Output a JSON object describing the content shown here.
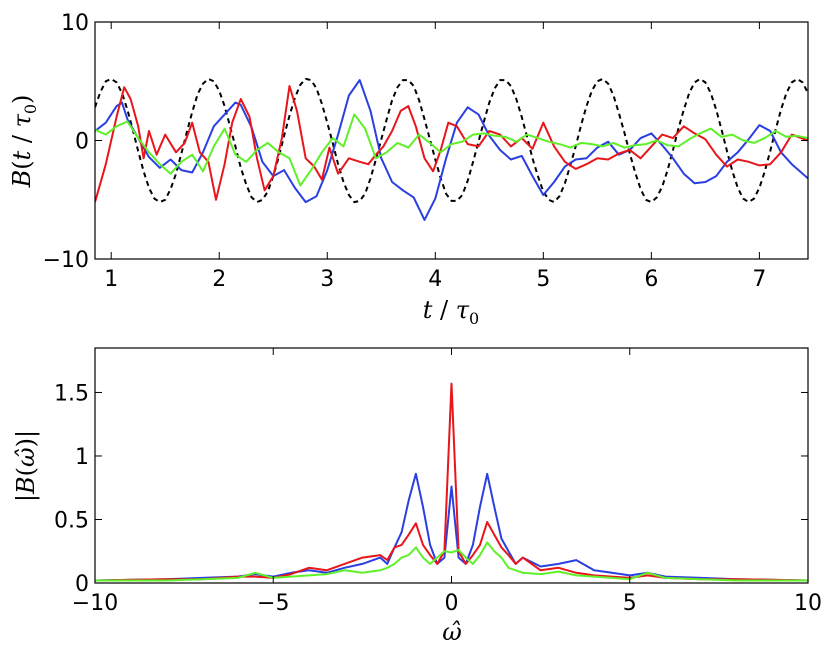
{
  "chart_data": [
    {
      "type": "line",
      "xlabel": "t / τ0",
      "ylabel": "B(t / τ0)",
      "xlim": [
        0.85,
        7.45
      ],
      "ylim": [
        -10,
        10
      ],
      "xticks": [
        1,
        2,
        3,
        4,
        5,
        6,
        7
      ],
      "yticks": [
        -10,
        0,
        10
      ],
      "ytick_labels": [
        "−10",
        "0",
        "10"
      ],
      "grid": false,
      "series": [
        {
          "color": "#000000",
          "style": "dashed",
          "x": [
            0.85,
            0.9,
            0.95,
            1.0,
            1.05,
            1.1,
            1.15,
            1.2,
            1.25,
            1.3,
            1.35,
            1.4,
            1.45,
            1.5,
            1.55,
            1.6,
            1.65,
            1.7,
            1.75,
            1.8,
            1.85,
            1.9,
            1.95,
            2.0,
            2.05,
            2.1,
            2.15,
            2.2,
            2.25,
            2.3,
            2.35,
            2.4,
            2.45,
            2.5,
            2.55,
            2.6,
            2.65,
            2.7,
            2.75,
            2.8,
            2.85,
            2.9,
            2.95,
            3.0,
            3.05,
            3.1,
            3.15,
            3.2,
            3.25,
            3.3,
            3.35,
            3.4,
            3.45,
            3.5,
            3.55,
            3.6,
            3.65,
            3.7,
            3.75,
            3.8,
            3.85,
            3.9,
            3.95,
            4.0,
            4.05,
            4.1,
            4.15,
            4.2,
            4.25,
            4.3,
            4.35,
            4.4,
            4.45,
            4.5,
            4.55,
            4.6,
            4.65,
            4.7,
            4.75,
            4.8,
            4.85,
            4.9,
            4.95,
            5.0,
            5.05,
            5.1,
            5.15,
            5.2,
            5.25,
            5.3,
            5.35,
            5.4,
            5.45,
            5.5,
            5.55,
            5.6,
            5.65,
            5.7,
            5.75,
            5.8,
            5.85,
            5.9,
            5.95,
            6.0,
            6.05,
            6.1,
            6.15,
            6.2,
            6.25,
            6.3,
            6.35,
            6.4,
            6.45,
            6.5,
            6.55,
            6.6,
            6.65,
            6.7,
            6.75,
            6.8,
            6.85,
            6.9,
            6.95,
            7.0,
            7.05,
            7.1,
            7.15,
            7.2,
            7.25,
            7.3,
            7.35,
            7.4,
            7.45
          ],
          "y": [
            2.8,
            4.1,
            5.0,
            5.2,
            4.9,
            4.0,
            2.6,
            0.9,
            -0.9,
            -2.6,
            -4.0,
            -4.9,
            -5.2,
            -5.0,
            -4.1,
            -2.8,
            -1.1,
            0.7,
            2.4,
            3.9,
            4.8,
            5.2,
            5.0,
            4.2,
            2.9,
            1.2,
            -0.5,
            -2.3,
            -3.7,
            -4.8,
            -5.2,
            -5.0,
            -4.3,
            -3.0,
            -1.4,
            0.4,
            2.1,
            3.6,
            4.7,
            5.2,
            5.1,
            4.4,
            3.1,
            1.5,
            -0.2,
            -2.0,
            -3.5,
            -4.6,
            -5.2,
            -5.1,
            -4.5,
            -3.2,
            -1.6,
            0.1,
            1.8,
            3.4,
            4.5,
            5.1,
            5.1,
            4.6,
            3.4,
            1.8,
            0.1,
            -1.6,
            -3.2,
            -4.5,
            -5.1,
            -5.1,
            -4.6,
            -3.4,
            -1.8,
            -0.1,
            1.6,
            3.2,
            4.4,
            5.1,
            5.1,
            4.6,
            3.5,
            2.0,
            0.3,
            -1.5,
            -3.0,
            -4.3,
            -5.0,
            -5.2,
            -4.7,
            -3.6,
            -2.1,
            -0.5,
            1.3,
            2.9,
            4.2,
            5.0,
            5.2,
            4.8,
            3.8,
            2.3,
            0.7,
            -1.1,
            -2.7,
            -4.1,
            -5.0,
            -5.2,
            -4.8,
            -3.9,
            -2.5,
            -0.8,
            1.0,
            2.6,
            4.0,
            4.9,
            5.2,
            4.9,
            4.0,
            2.6,
            0.9,
            -0.9,
            -2.6,
            -4.0,
            -4.9,
            -5.2,
            -4.9,
            -4.0,
            -2.6,
            -0.9,
            0.9,
            2.6,
            4.0,
            4.9,
            5.2,
            4.9,
            4.0
          ]
        },
        {
          "color": "#2a3fe0",
          "style": "solid",
          "x": [
            0.85,
            0.95,
            1.05,
            1.1,
            1.15,
            1.25,
            1.35,
            1.45,
            1.55,
            1.65,
            1.75,
            1.85,
            1.95,
            2.05,
            2.15,
            2.2,
            2.3,
            2.4,
            2.5,
            2.6,
            2.7,
            2.8,
            2.9,
            3.0,
            3.1,
            3.2,
            3.3,
            3.4,
            3.5,
            3.6,
            3.7,
            3.8,
            3.9,
            4.0,
            4.1,
            4.2,
            4.3,
            4.4,
            4.5,
            4.6,
            4.7,
            4.8,
            4.9,
            5.0,
            5.1,
            5.2,
            5.3,
            5.4,
            5.5,
            5.6,
            5.7,
            5.8,
            5.9,
            6.0,
            6.1,
            6.2,
            6.3,
            6.4,
            6.5,
            6.6,
            6.7,
            6.8,
            6.9,
            7.0,
            7.1,
            7.2,
            7.3,
            7.45
          ],
          "y": [
            0.8,
            1.5,
            2.9,
            3.2,
            1.8,
            0.2,
            -1.4,
            -2.3,
            -1.6,
            -2.5,
            -2.7,
            -1.0,
            1.2,
            2.2,
            3.2,
            3.0,
            1.1,
            -1.8,
            -3.0,
            -2.5,
            -4.0,
            -5.2,
            -4.7,
            -2.5,
            0.5,
            3.8,
            5.1,
            2.5,
            -1.5,
            -3.5,
            -4.2,
            -4.8,
            -6.7,
            -4.9,
            -1.5,
            1.5,
            2.8,
            2.2,
            0.4,
            -0.8,
            -1.6,
            -1.3,
            -3.0,
            -4.6,
            -3.5,
            -2.2,
            -1.6,
            -1.5,
            -0.6,
            -0.1,
            -1.2,
            -0.8,
            0.2,
            0.6,
            -0.4,
            -1.5,
            -2.8,
            -3.6,
            -3.5,
            -3.0,
            -1.8,
            -1.0,
            0.1,
            1.3,
            0.8,
            -1.0,
            -2.0,
            -3.2
          ]
        },
        {
          "color": "#e8161b",
          "style": "solid",
          "x": [
            0.85,
            0.95,
            1.05,
            1.12,
            1.18,
            1.25,
            1.3,
            1.35,
            1.42,
            1.5,
            1.6,
            1.68,
            1.75,
            1.82,
            1.9,
            1.97,
            2.05,
            2.12,
            2.2,
            2.28,
            2.35,
            2.42,
            2.5,
            2.58,
            2.65,
            2.72,
            2.8,
            2.88,
            2.95,
            3.02,
            3.1,
            3.2,
            3.3,
            3.38,
            3.45,
            3.52,
            3.6,
            3.68,
            3.75,
            3.82,
            3.9,
            3.98,
            4.05,
            4.12,
            4.2,
            4.3,
            4.4,
            4.5,
            4.6,
            4.7,
            4.8,
            4.9,
            5.0,
            5.1,
            5.2,
            5.3,
            5.4,
            5.5,
            5.6,
            5.7,
            5.8,
            5.9,
            6.0,
            6.1,
            6.2,
            6.3,
            6.4,
            6.5,
            6.6,
            6.7,
            6.8,
            6.9,
            7.0,
            7.1,
            7.2,
            7.3,
            7.45
          ],
          "y": [
            -5.2,
            -2.0,
            2.0,
            4.5,
            3.5,
            1.2,
            -1.5,
            0.8,
            -1.2,
            0.5,
            -1.0,
            -0.2,
            1.5,
            -1.0,
            -1.8,
            -5.0,
            -2.0,
            1.5,
            3.5,
            2.0,
            -1.5,
            -4.2,
            -3.0,
            0.2,
            4.6,
            2.5,
            -1.5,
            -2.2,
            -3.3,
            -0.6,
            -2.8,
            -1.5,
            -1.8,
            -2.0,
            -1.2,
            -0.5,
            0.8,
            2.5,
            2.9,
            1.2,
            -1.5,
            -2.6,
            -0.8,
            1.5,
            1.2,
            -0.3,
            -0.5,
            0.8,
            0.5,
            -0.5,
            0.2,
            -0.7,
            1.5,
            -0.5,
            -1.8,
            -2.4,
            -2.0,
            -1.5,
            -1.6,
            -1.1,
            -0.8,
            -1.5,
            -0.5,
            0.5,
            0.2,
            1.2,
            0.6,
            0.1,
            -1.2,
            -2.2,
            -1.6,
            -1.8,
            -2.1,
            -2.0,
            -1.0,
            0.5,
            0.0
          ]
        },
        {
          "color": "#5ff02a",
          "style": "solid",
          "x": [
            0.85,
            0.95,
            1.05,
            1.15,
            1.25,
            1.35,
            1.45,
            1.55,
            1.65,
            1.75,
            1.85,
            1.95,
            2.05,
            2.15,
            2.25,
            2.35,
            2.45,
            2.55,
            2.65,
            2.75,
            2.85,
            2.95,
            3.05,
            3.15,
            3.25,
            3.35,
            3.45,
            3.55,
            3.65,
            3.75,
            3.85,
            3.95,
            4.05,
            4.15,
            4.25,
            4.35,
            4.45,
            4.55,
            4.65,
            4.75,
            4.85,
            4.95,
            5.05,
            5.15,
            5.25,
            5.35,
            5.45,
            5.55,
            5.65,
            5.75,
            5.85,
            5.95,
            6.05,
            6.15,
            6.25,
            6.35,
            6.45,
            6.55,
            6.65,
            6.75,
            6.85,
            6.95,
            7.05,
            7.15,
            7.25,
            7.35,
            7.45
          ],
          "y": [
            0.9,
            0.5,
            1.2,
            1.6,
            0.2,
            -1.0,
            -2.0,
            -2.8,
            -1.8,
            -1.2,
            -2.6,
            -0.5,
            1.0,
            -1.2,
            -1.8,
            -0.8,
            -0.2,
            -1.0,
            -1.5,
            -3.8,
            -2.5,
            -1.0,
            0.2,
            -0.5,
            2.2,
            1.0,
            -1.5,
            -1.0,
            -0.2,
            -0.6,
            0.5,
            -0.2,
            -1.0,
            -0.3,
            -0.1,
            0.5,
            0.6,
            0.4,
            0.3,
            -0.1,
            0.5,
            0.2,
            -0.1,
            -0.3,
            -0.6,
            -0.2,
            -0.3,
            -0.5,
            -0.2,
            -0.6,
            -0.4,
            -0.3,
            0.0,
            -0.4,
            -0.5,
            0.1,
            0.6,
            1.0,
            0.3,
            0.5,
            0.0,
            -0.2,
            0.2,
            0.8,
            0.3,
            0.4,
            0.2
          ]
        }
      ]
    },
    {
      "type": "line",
      "xlabel": "ω̂",
      "ylabel": "|B(ω̂)|",
      "xlim": [
        -10,
        10
      ],
      "ylim": [
        0,
        1.85
      ],
      "xticks": [
        -10,
        -5,
        0,
        5,
        10
      ],
      "xtick_labels": [
        "−10",
        "−5",
        "0",
        "5",
        "10"
      ],
      "yticks": [
        0,
        0.5,
        1,
        1.5
      ],
      "ytick_labels": [
        "0",
        "0.5",
        "1",
        "1.5"
      ],
      "grid": false,
      "series": [
        {
          "color": "#2a3fe0",
          "style": "solid",
          "x": [
            -10,
            -8,
            -7,
            -6,
            -5.5,
            -5,
            -4.5,
            -4,
            -3.5,
            -3,
            -2.5,
            -2,
            -1.8,
            -1.6,
            -1.4,
            -1.2,
            -1.0,
            -0.8,
            -0.6,
            -0.4,
            -0.2,
            0,
            0.2,
            0.4,
            0.6,
            0.8,
            1.0,
            1.2,
            1.4,
            1.6,
            1.8,
            2,
            2.5,
            3,
            3.5,
            4,
            4.5,
            5,
            5.5,
            6,
            7,
            8,
            10
          ],
          "y": [
            0.02,
            0.03,
            0.04,
            0.05,
            0.07,
            0.05,
            0.08,
            0.1,
            0.08,
            0.12,
            0.15,
            0.2,
            0.15,
            0.28,
            0.4,
            0.65,
            0.86,
            0.6,
            0.3,
            0.15,
            0.2,
            0.76,
            0.2,
            0.15,
            0.3,
            0.6,
            0.86,
            0.6,
            0.35,
            0.25,
            0.15,
            0.2,
            0.13,
            0.15,
            0.18,
            0.1,
            0.08,
            0.06,
            0.08,
            0.05,
            0.04,
            0.03,
            0.02
          ]
        },
        {
          "color": "#e8161b",
          "style": "solid",
          "x": [
            -10,
            -8,
            -7,
            -6,
            -5.5,
            -5,
            -4.5,
            -4,
            -3.5,
            -3,
            -2.5,
            -2,
            -1.8,
            -1.6,
            -1.4,
            -1.2,
            -1.0,
            -0.8,
            -0.6,
            -0.4,
            -0.2,
            0,
            0.2,
            0.4,
            0.6,
            0.8,
            1.0,
            1.2,
            1.4,
            1.6,
            1.8,
            2,
            2.5,
            3,
            3.5,
            4,
            4.5,
            5,
            5.5,
            6,
            7,
            8,
            10
          ],
          "y": [
            0.02,
            0.03,
            0.03,
            0.05,
            0.05,
            0.04,
            0.07,
            0.12,
            0.1,
            0.15,
            0.2,
            0.22,
            0.18,
            0.28,
            0.3,
            0.38,
            0.47,
            0.3,
            0.22,
            0.15,
            0.25,
            1.57,
            0.25,
            0.15,
            0.22,
            0.3,
            0.48,
            0.38,
            0.28,
            0.22,
            0.15,
            0.2,
            0.1,
            0.12,
            0.08,
            0.06,
            0.05,
            0.04,
            0.06,
            0.04,
            0.03,
            0.03,
            0.02
          ]
        },
        {
          "color": "#5ff02a",
          "style": "solid",
          "x": [
            -10,
            -8,
            -7,
            -6,
            -5.5,
            -5,
            -4.5,
            -4,
            -3.5,
            -3,
            -2.5,
            -2,
            -1.8,
            -1.6,
            -1.4,
            -1.2,
            -1.0,
            -0.8,
            -0.6,
            -0.4,
            -0.2,
            0,
            0.2,
            0.4,
            0.6,
            0.8,
            1.0,
            1.2,
            1.4,
            1.6,
            1.8,
            2,
            2.5,
            3,
            3.5,
            4,
            4.5,
            5,
            5.5,
            6,
            7,
            8,
            10
          ],
          "y": [
            0.02,
            0.02,
            0.03,
            0.04,
            0.08,
            0.04,
            0.05,
            0.06,
            0.07,
            0.1,
            0.08,
            0.1,
            0.12,
            0.15,
            0.2,
            0.22,
            0.28,
            0.2,
            0.15,
            0.2,
            0.25,
            0.24,
            0.26,
            0.2,
            0.15,
            0.22,
            0.32,
            0.25,
            0.2,
            0.12,
            0.1,
            0.08,
            0.07,
            0.09,
            0.06,
            0.05,
            0.04,
            0.03,
            0.08,
            0.04,
            0.03,
            0.02,
            0.02
          ]
        }
      ]
    }
  ]
}
